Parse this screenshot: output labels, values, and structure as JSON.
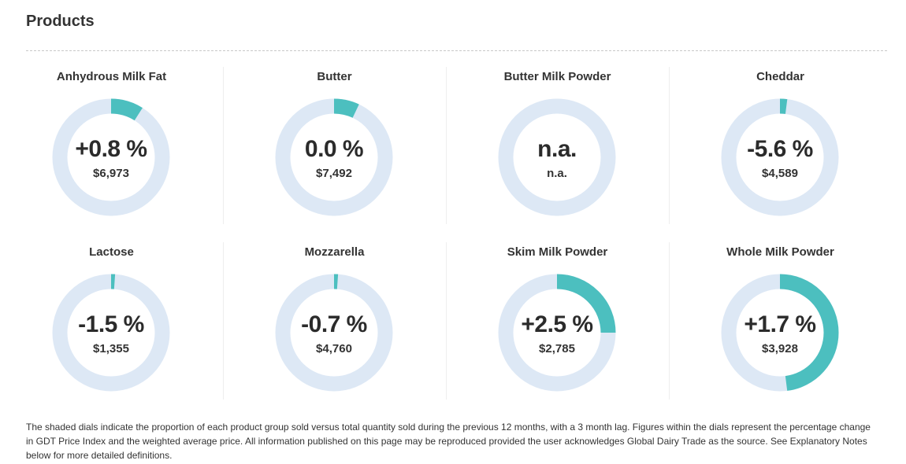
{
  "page": {
    "title": "Products",
    "footnote": "The shaded dials indicate the proportion of each product group sold versus total quantity sold during the previous 12 months, with a 3 month lag. Figures within the dials represent the percentage change in GDT Price Index and the weighted average price. All information published on this page may be reproduced provided the user acknowledges Global Dairy Trade as the source. See Explanatory Notes below for more detailed definitions."
  },
  "colors": {
    "dial_track": "#dde8f5",
    "dial_fill": "#4cbfbf"
  },
  "products": [
    {
      "name": "Anhydrous Milk Fat",
      "change": "+0.8 %",
      "price": "$6,973",
      "share": 0.09
    },
    {
      "name": "Butter",
      "change": "0.0 %",
      "price": "$7,492",
      "share": 0.07
    },
    {
      "name": "Butter Milk Powder",
      "change": "n.a.",
      "price": "n.a.",
      "share": 0
    },
    {
      "name": "Cheddar",
      "change": "-5.6 %",
      "price": "$4,589",
      "share": 0.02
    },
    {
      "name": "Lactose",
      "change": "-1.5 %",
      "price": "$1,355",
      "share": 0.011
    },
    {
      "name": "Mozzarella",
      "change": "-0.7 %",
      "price": "$4,760",
      "share": 0.011
    },
    {
      "name": "Skim Milk Powder",
      "change": "+2.5 %",
      "price": "$2,785",
      "share": 0.25
    },
    {
      "name": "Whole Milk Powder",
      "change": "+1.7 %",
      "price": "$3,928",
      "share": 0.48
    }
  ]
}
